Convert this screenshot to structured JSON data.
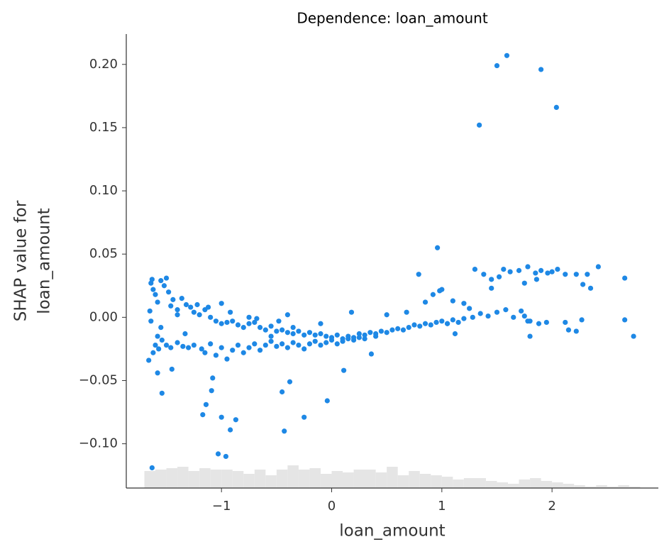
{
  "chart_data": {
    "type": "scatter",
    "title": "Dependence: loan_amount",
    "xlabel": "loan_amount",
    "ylabel": [
      "SHAP value for",
      "loan_amount"
    ],
    "xlim": [
      -1.864,
      2.965
    ],
    "ylim": [
      -0.135,
      0.224
    ],
    "xticks": [
      {
        "value": -1,
        "label": "−1"
      },
      0,
      1,
      2
    ],
    "yticks": [
      {
        "value": -0.1,
        "label": "−0.10"
      },
      {
        "value": -0.05,
        "label": "−0.05"
      },
      {
        "value": 0,
        "label": "0.00"
      },
      {
        "value": 0.05,
        "label": "0.05"
      },
      {
        "value": 0.1,
        "label": "0.10"
      },
      {
        "value": 0.15,
        "label": "0.15"
      },
      {
        "value": 0.2,
        "label": "0.20"
      }
    ],
    "histogram": {
      "color": "#e5e5e5",
      "bins": [
        -1.7,
        -1.6,
        -1.5,
        -1.4,
        -1.3,
        -1.2,
        -1.1,
        -1.0,
        -0.9,
        -0.8,
        -0.7,
        -0.6,
        -0.5,
        -0.4,
        -0.3,
        -0.2,
        -0.1,
        0.0,
        0.1,
        0.2,
        0.3,
        0.4,
        0.5,
        0.6,
        0.7,
        0.8,
        0.9,
        1.0,
        1.1,
        1.2,
        1.3,
        1.4,
        1.5,
        1.6,
        1.7,
        1.8,
        1.9,
        2.0,
        2.1,
        2.2,
        2.3,
        2.4,
        2.5,
        2.6,
        2.7,
        2.8
      ],
      "counts": [
        12,
        13,
        14,
        15,
        12,
        14,
        13,
        13,
        12,
        10,
        13,
        9,
        13,
        16,
        13,
        14,
        10,
        12,
        11,
        13,
        13,
        11,
        15,
        9,
        12,
        10,
        9,
        8,
        6,
        7,
        7,
        5,
        4,
        3,
        6,
        7,
        5,
        4,
        3,
        2,
        1,
        2,
        1,
        2,
        1
      ]
    },
    "series": [
      {
        "color": "#1e88e5",
        "x": [
          -1.63,
          -1.03,
          -0.96,
          -1.0,
          -0.87,
          -0.92,
          -1.17,
          -1.14,
          -1.09,
          -1.08,
          -1.58,
          -1.54,
          -0.43,
          -0.25,
          -0.45,
          -0.38,
          -0.04,
          0.11,
          0.36,
          1.34,
          1.5,
          1.59,
          1.9,
          2.04,
          0.96,
          0.79,
          2.66,
          2.66,
          2.74,
          2.42,
          -1.64,
          -1.62,
          -1.6,
          -1.58,
          -1.55,
          -1.52,
          -1.5,
          -1.48,
          -1.46,
          -1.44,
          -1.4,
          -1.36,
          -1.32,
          -1.28,
          -1.25,
          -1.2,
          -1.15,
          -1.1,
          -1.05,
          -1.0,
          -0.95,
          -0.9,
          -0.85,
          -0.8,
          -0.75,
          -0.7,
          -0.65,
          -0.6,
          -0.55,
          -0.5,
          -0.45,
          -0.4,
          -0.35,
          -0.3,
          -0.25,
          -0.2,
          -0.15,
          -0.1,
          -0.05,
          0.0,
          0.05,
          0.1,
          0.15,
          0.2,
          0.25,
          0.3,
          0.35,
          0.4,
          0.45,
          0.5,
          0.55,
          0.6,
          0.65,
          0.7,
          0.75,
          0.8,
          0.85,
          0.9,
          0.95,
          1.0,
          1.05,
          1.1,
          1.15,
          1.2,
          1.28,
          1.35,
          1.42,
          1.5,
          1.58,
          1.65,
          1.72,
          1.8,
          1.88,
          1.95,
          -1.66,
          -1.62,
          -1.6,
          -1.57,
          -1.54,
          -1.5,
          -1.46,
          -1.4,
          -1.35,
          -1.3,
          -1.25,
          -1.18,
          -1.15,
          -1.1,
          -1.05,
          -1.0,
          -0.95,
          -0.9,
          -0.85,
          -0.8,
          -0.75,
          -0.7,
          -0.65,
          -0.6,
          -0.55,
          -0.5,
          -0.45,
          -0.4,
          -0.35,
          -0.3,
          -0.25,
          -0.2,
          -0.15,
          -0.1,
          -0.05,
          0.0,
          0.05,
          0.1,
          0.15,
          0.2,
          0.25,
          0.3,
          0.4,
          -1.65,
          -1.64,
          -1.63,
          -1.58,
          -1.55,
          -1.45,
          -1.4,
          -1.33,
          -1.22,
          -1.12,
          -1.0,
          -0.92,
          -0.75,
          -0.68,
          -0.55,
          -0.48,
          -0.4,
          -0.35,
          -0.1,
          0.18,
          0.5,
          0.68,
          0.85,
          0.92,
          0.98,
          1.0,
          1.1,
          1.2,
          1.25,
          1.05,
          1.12,
          1.3,
          1.38,
          1.45,
          1.45,
          1.52,
          1.56,
          1.62,
          1.7,
          1.75,
          1.78,
          1.85,
          1.9,
          1.96,
          2.0,
          2.05,
          2.12,
          2.22,
          2.28,
          2.35,
          2.32,
          1.86,
          1.78,
          1.8,
          2.12,
          2.15,
          2.22,
          2.27,
          1.75
        ],
        "y": [
          -0.119,
          -0.108,
          -0.11,
          -0.079,
          -0.081,
          -0.089,
          -0.077,
          -0.069,
          -0.058,
          -0.048,
          -0.044,
          -0.06,
          -0.09,
          -0.079,
          -0.059,
          -0.051,
          -0.066,
          -0.042,
          -0.029,
          0.152,
          0.199,
          0.207,
          0.196,
          0.166,
          0.055,
          0.034,
          0.031,
          -0.002,
          -0.015,
          0.04,
          0.027,
          0.022,
          0.018,
          0.012,
          0.029,
          0.025,
          0.031,
          0.02,
          0.009,
          0.014,
          0.006,
          0.015,
          0.01,
          0.008,
          0.004,
          0.002,
          0.006,
          0.0,
          -0.003,
          -0.005,
          -0.004,
          -0.003,
          -0.006,
          -0.008,
          -0.005,
          -0.004,
          -0.008,
          -0.01,
          -0.007,
          -0.011,
          -0.01,
          -0.012,
          -0.013,
          -0.011,
          -0.014,
          -0.012,
          -0.014,
          -0.013,
          -0.015,
          -0.016,
          -0.014,
          -0.017,
          -0.015,
          -0.016,
          -0.013,
          -0.014,
          -0.012,
          -0.013,
          -0.011,
          -0.012,
          -0.01,
          -0.009,
          -0.01,
          -0.008,
          -0.006,
          -0.007,
          -0.005,
          -0.006,
          -0.004,
          -0.003,
          -0.005,
          -0.002,
          -0.004,
          -0.001,
          0.0,
          0.003,
          0.001,
          0.004,
          0.006,
          0.0,
          0.005,
          -0.003,
          -0.005,
          -0.004,
          -0.034,
          -0.028,
          -0.022,
          -0.025,
          -0.018,
          -0.022,
          -0.024,
          -0.02,
          -0.023,
          -0.024,
          -0.022,
          -0.025,
          -0.028,
          -0.021,
          -0.03,
          -0.024,
          -0.033,
          -0.026,
          -0.022,
          -0.028,
          -0.024,
          -0.021,
          -0.026,
          -0.022,
          -0.019,
          -0.023,
          -0.021,
          -0.024,
          -0.02,
          -0.022,
          -0.025,
          -0.021,
          -0.019,
          -0.022,
          -0.02,
          -0.018,
          -0.021,
          -0.019,
          -0.017,
          -0.018,
          -0.016,
          -0.017,
          -0.015,
          0.005,
          -0.003,
          0.03,
          -0.015,
          -0.008,
          -0.041,
          0.002,
          -0.013,
          0.01,
          0.008,
          0.011,
          0.004,
          0.0,
          -0.001,
          -0.015,
          -0.003,
          0.002,
          -0.008,
          -0.005,
          0.004,
          0.002,
          0.004,
          0.012,
          0.018,
          0.021,
          0.022,
          0.013,
          0.011,
          0.007,
          -0.005,
          -0.013,
          0.038,
          0.034,
          0.023,
          0.03,
          0.032,
          0.038,
          0.036,
          0.037,
          0.027,
          0.04,
          0.035,
          0.037,
          0.035,
          0.036,
          0.038,
          0.034,
          0.034,
          0.026,
          0.023,
          0.034,
          0.03,
          -0.003,
          -0.015,
          -0.004,
          -0.01,
          -0.011,
          -0.002,
          0.001
        ]
      }
    ]
  }
}
